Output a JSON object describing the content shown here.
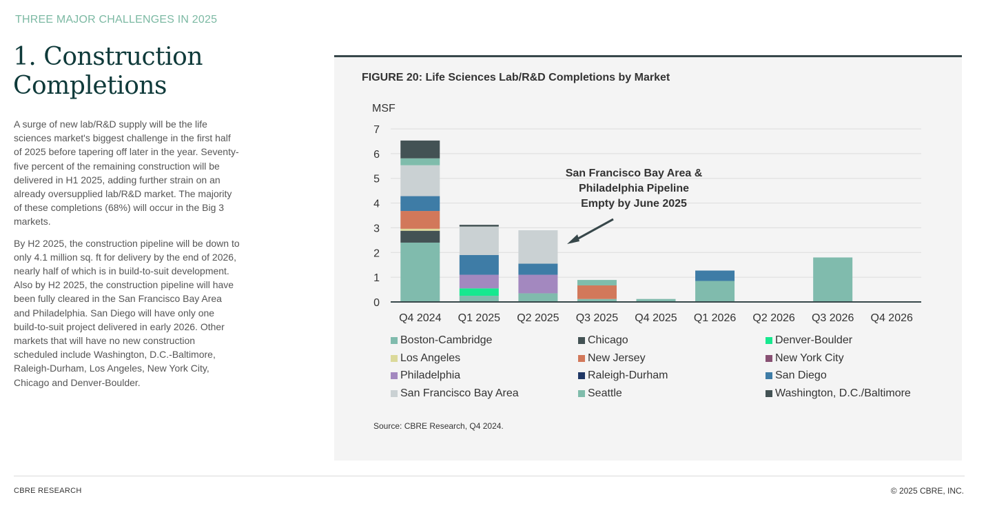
{
  "eyebrow": "THREE MAJOR CHALLENGES IN 2025",
  "headline": "1. Construction Completions",
  "body": {
    "p1": "A surge of new lab/R&D supply will be the life sciences market's biggest challenge in the first half of 2025 before tapering off later in the year. Seventy-five percent of the remaining construction will be delivered in H1 2025, adding further strain on an already oversupplied lab/R&D market. The majority of  these completions (68%) will occur in the Big 3 markets.",
    "p2": "By H2 2025, the construction pipeline will be down to only 4.1 million sq. ft for delivery by the end of 2026, nearly half of which is in build-to-suit development. Also by H2 2025, the construction pipeline will have been fully cleared in the San Francisco Bay Area and Philadelphia. San Diego will have only one build-to-suit project delivered in early 2026. Other markets that will have no new construction scheduled include Washington, D.C.-Baltimore, Raleigh-Durham, Los Angeles, New York City, Chicago and Denver-Boulder."
  },
  "figure": {
    "title": "FIGURE 20: Life Sciences Lab/R&D Completions by Market",
    "source": "Source: CBRE Research, Q4 2024.",
    "annotation": {
      "line1": "San Francisco Bay Area &",
      "line2": "Philadelphia Pipeline",
      "line3": "Empty by June 2025"
    }
  },
  "footer": {
    "left": "CBRE RESEARCH",
    "right": "© 2025 CBRE, INC."
  },
  "chart_data": {
    "type": "bar",
    "stacked": true,
    "ylabel": "MSF",
    "ylim": [
      0,
      7
    ],
    "yticks": [
      0,
      1,
      2,
      3,
      4,
      5,
      6,
      7
    ],
    "grid": true,
    "legend_position": "bottom",
    "categories": [
      "Q4 2024",
      "Q1 2025",
      "Q2 2025",
      "Q3 2025",
      "Q4 2025",
      "Q1 2026",
      "Q2 2026",
      "Q3 2026",
      "Q4 2026"
    ],
    "series": [
      {
        "name": "Boston-Cambridge",
        "color": "#80bbad",
        "values": [
          2.4,
          0.25,
          0.35,
          0.12,
          0.12,
          0.85,
          0,
          1.8,
          0
        ]
      },
      {
        "name": "Chicago",
        "color": "#435254",
        "values": [
          0.48,
          0,
          0,
          0,
          0,
          0,
          0,
          0,
          0
        ]
      },
      {
        "name": "Denver-Boulder",
        "color": "#17e88f",
        "values": [
          0,
          0.3,
          0,
          0,
          0,
          0,
          0,
          0,
          0
        ]
      },
      {
        "name": "Los Angeles",
        "color": "#dbd99a",
        "values": [
          0.08,
          0,
          0,
          0,
          0,
          0,
          0,
          0,
          0
        ]
      },
      {
        "name": "New Jersey",
        "color": "#d2785a",
        "values": [
          0.72,
          0,
          0,
          0.55,
          0,
          0,
          0,
          0,
          0
        ]
      },
      {
        "name": "New York City",
        "color": "#885073",
        "values": [
          0,
          0,
          0,
          0,
          0,
          0,
          0,
          0,
          0
        ]
      },
      {
        "name": "Philadelphia",
        "color": "#a388bf",
        "values": [
          0,
          0.55,
          0.75,
          0,
          0,
          0,
          0,
          0,
          0
        ]
      },
      {
        "name": "Raleigh-Durham",
        "color": "#1f3765",
        "values": [
          0,
          0,
          0,
          0,
          0,
          0,
          0,
          0,
          0
        ]
      },
      {
        "name": "San Diego",
        "color": "#3e7ca6",
        "values": [
          0.6,
          0.8,
          0.45,
          0,
          0,
          0.42,
          0,
          0,
          0
        ]
      },
      {
        "name": "San Francisco Bay Area",
        "color": "#cad1d3",
        "values": [
          1.25,
          1.15,
          1.35,
          0,
          0,
          0,
          0,
          0,
          0
        ]
      },
      {
        "name": "Seattle",
        "color": "#7fbcab",
        "values": [
          0.28,
          0,
          0,
          0.22,
          0,
          0,
          0,
          0,
          0
        ]
      },
      {
        "name": "Washington, D.C./Baltimore",
        "color": "#435254",
        "values": [
          0.72,
          0.07,
          0,
          0,
          0,
          0,
          0,
          0,
          0
        ]
      }
    ]
  }
}
